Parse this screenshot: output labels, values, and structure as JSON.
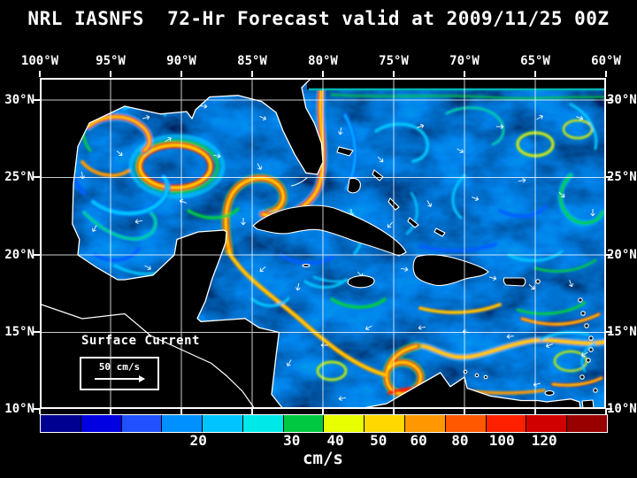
{
  "title": "NRL IASNFS  72-Hr Forecast valid at 2009/11/25 00Z",
  "axes": {
    "x_ticks": [
      "100°W",
      "95°W",
      "90°W",
      "85°W",
      "80°W",
      "75°W",
      "70°W",
      "65°W",
      "60°W"
    ],
    "y_ticks": [
      "30°N",
      "25°N",
      "20°N",
      "15°N",
      "10°N"
    ]
  },
  "map": {
    "legend_title": "Surface Current",
    "scale_label": "50 cm/s"
  },
  "colorbar": {
    "unit": "cm/s",
    "colors": [
      "#000090",
      "#0000e0",
      "#2050ff",
      "#0090ff",
      "#00c4ff",
      "#00e8e8",
      "#00c840",
      "#e8ff00",
      "#ffd800",
      "#ff9800",
      "#ff5800",
      "#ff2000",
      "#d00000",
      "#980000"
    ],
    "ticks": [
      {
        "label": "20",
        "pos": 0.28
      },
      {
        "label": "30",
        "pos": 0.445
      },
      {
        "label": "40",
        "pos": 0.522
      },
      {
        "label": "50",
        "pos": 0.598
      },
      {
        "label": "60",
        "pos": 0.669
      },
      {
        "label": "80",
        "pos": 0.742
      },
      {
        "label": "100",
        "pos": 0.816
      },
      {
        "label": "120",
        "pos": 0.891
      }
    ]
  },
  "colors": {
    "background": "#000000",
    "text": "#ffffff",
    "grid": "#ffffff",
    "land": "#000000",
    "coastline": "#ffffff"
  }
}
